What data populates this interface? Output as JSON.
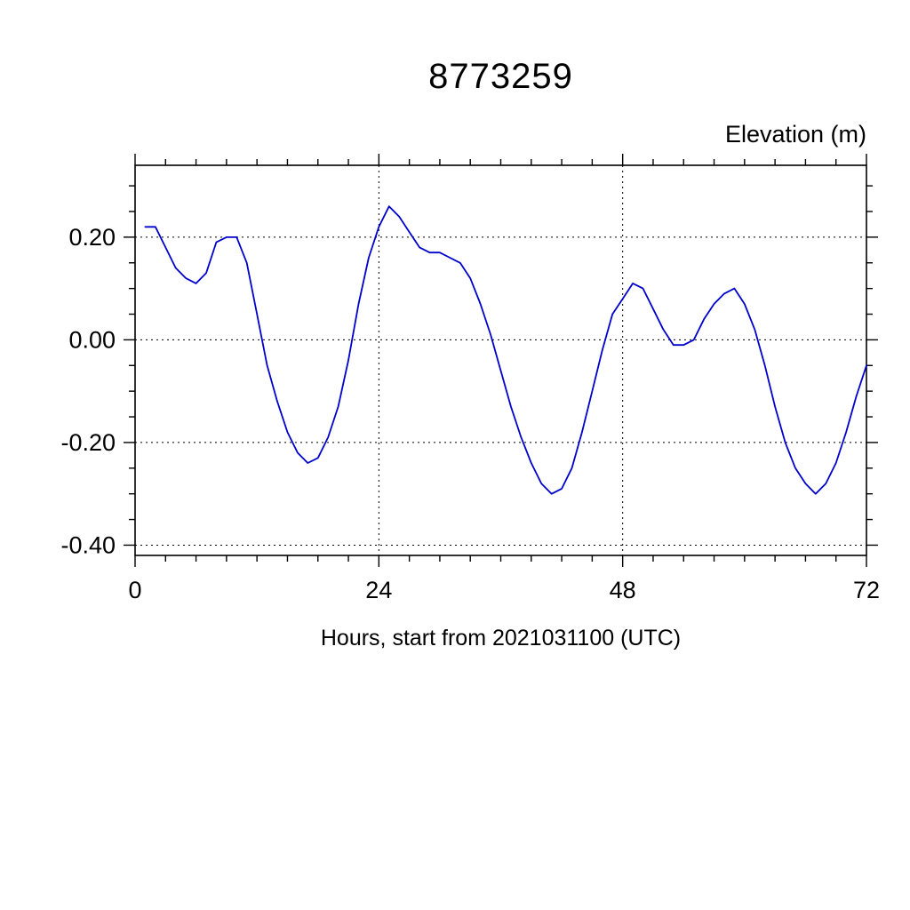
{
  "chart_data": {
    "type": "line",
    "title": "8773259",
    "ylabel": "Elevation (m)",
    "xlabel": "Hours, start from 2021031100 (UTC)",
    "xlim": [
      0,
      72
    ],
    "ylim": [
      -0.42,
      0.34
    ],
    "x_major_ticks": [
      0,
      24,
      48,
      72
    ],
    "x_tick_labels": [
      "0",
      "24",
      "48",
      "72"
    ],
    "x_minor_step": 3,
    "y_major_ticks": [
      0.2,
      0.0,
      -0.2,
      -0.4
    ],
    "y_tick_labels": [
      "0.20",
      "0.00",
      "-0.20",
      "-0.40"
    ],
    "y_minor_step": 0.05,
    "grid_x": [
      24,
      48
    ],
    "grid_y": [
      0.2,
      0.0,
      -0.2,
      -0.4
    ],
    "grid_on": true,
    "legend": "none",
    "line_color": "#0000cd",
    "series": [
      {
        "name": "elevation",
        "x": [
          1,
          2,
          3,
          4,
          5,
          6,
          7,
          8,
          9,
          10,
          11,
          12,
          13,
          14,
          15,
          16,
          17,
          18,
          19,
          20,
          21,
          22,
          23,
          24,
          25,
          26,
          27,
          28,
          29,
          30,
          31,
          32,
          33,
          34,
          35,
          36,
          37,
          38,
          39,
          40,
          41,
          42,
          43,
          44,
          45,
          46,
          47,
          48,
          49,
          50,
          51,
          52,
          53,
          54,
          55,
          56,
          57,
          58,
          59,
          60,
          61,
          62,
          63,
          64,
          65,
          66,
          67,
          68,
          69,
          70,
          71,
          72
        ],
        "values": [
          0.22,
          0.22,
          0.18,
          0.14,
          0.12,
          0.11,
          0.13,
          0.19,
          0.2,
          0.2,
          0.15,
          0.05,
          -0.05,
          -0.12,
          -0.18,
          -0.22,
          -0.24,
          -0.23,
          -0.19,
          -0.13,
          -0.04,
          0.07,
          0.16,
          0.22,
          0.26,
          0.24,
          0.21,
          0.18,
          0.17,
          0.17,
          0.16,
          0.15,
          0.12,
          0.07,
          0.01,
          -0.06,
          -0.13,
          -0.19,
          -0.24,
          -0.28,
          -0.3,
          -0.29,
          -0.25,
          -0.18,
          -0.1,
          -0.02,
          0.05,
          0.08,
          0.11,
          0.1,
          0.06,
          0.02,
          -0.01,
          -0.01,
          0.0,
          0.04,
          0.07,
          0.09,
          0.1,
          0.07,
          0.02,
          -0.05,
          -0.13,
          -0.2,
          -0.25,
          -0.28,
          -0.3,
          -0.28,
          -0.24,
          -0.18,
          -0.11,
          -0.05
        ]
      }
    ]
  }
}
